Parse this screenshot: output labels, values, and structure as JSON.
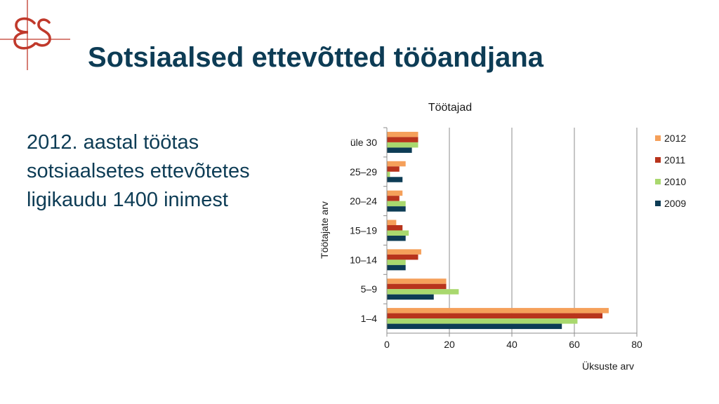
{
  "slide": {
    "title": "Sotsiaalsed ettevõtted tööandjana",
    "body": "2012. aastal töötas sotsiaalsetes ettevõtetes ligikaudu 1400 inimest"
  },
  "logo": {
    "icon": "es-monogram-icon",
    "color": "#c0392b"
  },
  "chart_data": {
    "type": "bar",
    "orientation": "horizontal",
    "title": "Töötajad",
    "xlabel": "Üksuste arv",
    "ylabel": "Töötajate arv",
    "categories": [
      "1–4",
      "5–9",
      "10–14",
      "15–19",
      "20–24",
      "25–29",
      "üle 30"
    ],
    "series": [
      {
        "name": "2012",
        "color": "#f5a05a",
        "values": [
          71,
          19,
          11,
          3,
          5,
          6,
          10
        ]
      },
      {
        "name": "2011",
        "color": "#b8341c",
        "values": [
          69,
          19,
          10,
          5,
          4,
          4,
          10
        ]
      },
      {
        "name": "2010",
        "color": "#a9d86e",
        "values": [
          61,
          23,
          6,
          7,
          6,
          1,
          10
        ]
      },
      {
        "name": "2009",
        "color": "#0d3c55",
        "values": [
          56,
          15,
          6,
          6,
          6,
          5,
          8
        ]
      }
    ],
    "xlim": [
      0,
      80
    ],
    "xticks": [
      "0",
      "20",
      "40",
      "60",
      "80"
    ],
    "grid": true,
    "legend_position": "right"
  }
}
